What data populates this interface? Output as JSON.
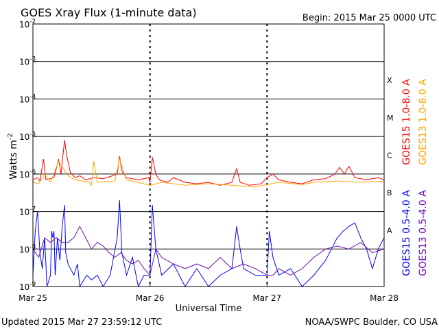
{
  "header": {
    "title": "GOES Xray Flux (1-minute data)",
    "begin": "Begin:  2015 Mar 25 0000 UTC"
  },
  "footer": {
    "updated": "Updated 2015 Mar 27 23:59:12 UTC",
    "credit": "NOAA/SWPC Boulder, CO USA"
  },
  "colors": {
    "goes15_long": "#ff0000",
    "goes13_long": "#ffa500",
    "goes15_short": "#0000ff",
    "goes13_short": "#6a0dad",
    "background": "#ffffff",
    "axis": "#000000"
  },
  "chart_data": {
    "type": "line",
    "title": "GOES Xray Flux (1-minute data)",
    "xlabel": "Universal Time",
    "ylabel_base": "Watts m",
    "ylabel_exp": "-2",
    "y_scale": "log",
    "ylim": [
      1e-09,
      0.01
    ],
    "xlim_days": [
      0,
      3
    ],
    "x_ticks": [
      {
        "day": 0,
        "label": "Mar 25"
      },
      {
        "day": 1,
        "label": "Mar 26"
      },
      {
        "day": 2,
        "label": "Mar 27"
      },
      {
        "day": 3,
        "label": "Mar 28"
      }
    ],
    "y_ticks": [
      {
        "exp": -2,
        "label": "-2"
      },
      {
        "exp": -3,
        "label": "-3"
      },
      {
        "exp": -4,
        "label": "-4"
      },
      {
        "exp": -5,
        "label": "-5"
      },
      {
        "exp": -6,
        "label": "-6"
      },
      {
        "exp": -7,
        "label": "-7"
      },
      {
        "exp": -8,
        "label": "-8"
      },
      {
        "exp": -9,
        "label": "-9"
      }
    ],
    "flare_classes": [
      {
        "label": "X",
        "exp": -3.5
      },
      {
        "label": "M",
        "exp": -4.5
      },
      {
        "label": "C",
        "exp": -5.5
      },
      {
        "label": "B",
        "exp": -6.5
      },
      {
        "label": "A",
        "exp": -7.5
      }
    ],
    "grid": true,
    "legend": "right-vertical",
    "series": [
      {
        "name": "GOES15 1.0-8.0 A",
        "color": "#ff0000",
        "points": [
          [
            0.0,
            7e-07
          ],
          [
            0.04,
            8e-07
          ],
          [
            0.06,
            6.5e-07
          ],
          [
            0.09,
            2.5e-06
          ],
          [
            0.11,
            7e-07
          ],
          [
            0.18,
            8e-07
          ],
          [
            0.22,
            2.5e-06
          ],
          [
            0.24,
            1e-06
          ],
          [
            0.27,
            8e-06
          ],
          [
            0.29,
            3e-06
          ],
          [
            0.32,
            1.1e-06
          ],
          [
            0.36,
            8e-07
          ],
          [
            0.4,
            9e-07
          ],
          [
            0.45,
            7e-07
          ],
          [
            0.52,
            8e-07
          ],
          [
            0.6,
            7.5e-07
          ],
          [
            0.68,
            9e-07
          ],
          [
            0.72,
            1e-06
          ],
          [
            0.74,
            3e-06
          ],
          [
            0.76,
            1.2e-06
          ],
          [
            0.8,
            8e-07
          ],
          [
            0.9,
            7e-07
          ],
          [
            0.99,
            8e-07
          ],
          [
            1.0,
            6e-07
          ],
          [
            1.02,
            2.8e-06
          ],
          [
            1.05,
            1e-06
          ],
          [
            1.08,
            7e-07
          ],
          [
            1.15,
            6e-07
          ],
          [
            1.2,
            8e-07
          ],
          [
            1.3,
            6e-07
          ],
          [
            1.4,
            5.5e-07
          ],
          [
            1.5,
            6e-07
          ],
          [
            1.6,
            5e-07
          ],
          [
            1.7,
            6e-07
          ],
          [
            1.74,
            1.4e-06
          ],
          [
            1.77,
            6e-07
          ],
          [
            1.85,
            5e-07
          ],
          [
            1.95,
            5.5e-07
          ],
          [
            2.0,
            8e-07
          ],
          [
            2.05,
            1e-06
          ],
          [
            2.1,
            7e-07
          ],
          [
            2.2,
            6e-07
          ],
          [
            2.3,
            5.5e-07
          ],
          [
            2.4,
            7e-07
          ],
          [
            2.5,
            7.5e-07
          ],
          [
            2.58,
            1e-06
          ],
          [
            2.62,
            1.5e-06
          ],
          [
            2.66,
            1e-06
          ],
          [
            2.7,
            1.6e-06
          ],
          [
            2.75,
            8e-07
          ],
          [
            2.85,
            7e-07
          ],
          [
            2.95,
            8e-07
          ],
          [
            3.0,
            7e-07
          ]
        ]
      },
      {
        "name": "GOES13 1.0-8.0 A",
        "color": "#ffa500",
        "points": [
          [
            0.0,
            6e-07
          ],
          [
            0.05,
            5.5e-07
          ],
          [
            0.1,
            1e-06
          ],
          [
            0.15,
            6e-07
          ],
          [
            0.22,
            2.2e-06
          ],
          [
            0.3,
            9e-07
          ],
          [
            0.36,
            7e-07
          ],
          [
            0.48,
            6e-07
          ],
          [
            0.5,
            5e-07
          ],
          [
            0.52,
            2.2e-06
          ],
          [
            0.55,
            6e-07
          ],
          [
            0.7,
            6.5e-07
          ],
          [
            0.74,
            2.5e-06
          ],
          [
            0.8,
            7e-07
          ],
          [
            1.0,
            5e-07
          ],
          [
            1.1,
            6e-07
          ],
          [
            1.3,
            5e-07
          ],
          [
            1.5,
            5.5e-07
          ],
          [
            1.7,
            5e-07
          ],
          [
            1.9,
            4.5e-07
          ],
          [
            2.1,
            6e-07
          ],
          [
            2.3,
            5.2e-07
          ],
          [
            2.4,
            6e-07
          ],
          [
            2.6,
            6.5e-07
          ],
          [
            2.8,
            6e-07
          ],
          [
            3.0,
            6.5e-07
          ]
        ]
      },
      {
        "name": "GOES15 0.5-4.0 A",
        "color": "#0000ff",
        "points": [
          [
            0.0,
            2e-09
          ],
          [
            0.02,
            3e-08
          ],
          [
            0.04,
            1e-07
          ],
          [
            0.06,
            8e-09
          ],
          [
            0.08,
            3e-09
          ],
          [
            0.1,
            2e-08
          ],
          [
            0.12,
            1e-09
          ],
          [
            0.15,
            2e-09
          ],
          [
            0.16,
            3e-08
          ],
          [
            0.17,
            2e-08
          ],
          [
            0.18,
            3e-08
          ],
          [
            0.19,
            2e-09
          ],
          [
            0.21,
            2e-08
          ],
          [
            0.23,
            5e-09
          ],
          [
            0.25,
            4e-08
          ],
          [
            0.27,
            1.5e-07
          ],
          [
            0.28,
            8e-09
          ],
          [
            0.3,
            4e-09
          ],
          [
            0.35,
            2e-09
          ],
          [
            0.38,
            4e-09
          ],
          [
            0.4,
            1e-09
          ],
          [
            0.46,
            2e-09
          ],
          [
            0.5,
            1.5e-09
          ],
          [
            0.55,
            2e-09
          ],
          [
            0.6,
            1e-09
          ],
          [
            0.66,
            2e-09
          ],
          [
            0.72,
            2e-08
          ],
          [
            0.74,
            2e-07
          ],
          [
            0.76,
            8e-09
          ],
          [
            0.8,
            2e-09
          ],
          [
            0.85,
            6e-09
          ],
          [
            0.9,
            1e-09
          ],
          [
            0.95,
            2e-09
          ],
          [
            1.0,
            2e-09
          ],
          [
            1.02,
            1.5e-07
          ],
          [
            1.05,
            1e-08
          ],
          [
            1.1,
            2e-09
          ],
          [
            1.2,
            4e-09
          ],
          [
            1.3,
            1e-09
          ],
          [
            1.4,
            3e-09
          ],
          [
            1.5,
            1e-09
          ],
          [
            1.6,
            2e-09
          ],
          [
            1.7,
            3e-09
          ],
          [
            1.74,
            4e-08
          ],
          [
            1.77,
            1e-08
          ],
          [
            1.8,
            3e-09
          ],
          [
            1.9,
            2e-09
          ],
          [
            2.0,
            2e-09
          ],
          [
            2.02,
            3e-08
          ],
          [
            2.05,
            6e-09
          ],
          [
            2.1,
            2e-09
          ],
          [
            2.2,
            3e-09
          ],
          [
            2.3,
            1e-09
          ],
          [
            2.4,
            2e-09
          ],
          [
            2.5,
            5e-09
          ],
          [
            2.55,
            1e-08
          ],
          [
            2.6,
            2e-08
          ],
          [
            2.65,
            3e-08
          ],
          [
            2.7,
            4e-08
          ],
          [
            2.75,
            5e-08
          ],
          [
            2.8,
            2e-08
          ],
          [
            2.85,
            1e-08
          ],
          [
            2.9,
            3e-09
          ],
          [
            2.95,
            1e-08
          ],
          [
            3.0,
            2e-08
          ]
        ]
      },
      {
        "name": "GOES13 0.5-4.0 A",
        "color": "#6a0dad",
        "points": [
          [
            0.0,
            1e-08
          ],
          [
            0.05,
            6e-09
          ],
          [
            0.1,
            2e-08
          ],
          [
            0.15,
            1.5e-08
          ],
          [
            0.2,
            2e-08
          ],
          [
            0.25,
            1.5e-08
          ],
          [
            0.3,
            1.5e-08
          ],
          [
            0.35,
            2e-08
          ],
          [
            0.4,
            4e-08
          ],
          [
            0.45,
            2e-08
          ],
          [
            0.5,
            1e-08
          ],
          [
            0.55,
            1.5e-08
          ],
          [
            0.6,
            1.2e-08
          ],
          [
            0.65,
            8e-09
          ],
          [
            0.7,
            6e-09
          ],
          [
            0.75,
            8e-09
          ],
          [
            0.8,
            5e-09
          ],
          [
            0.85,
            4e-09
          ],
          [
            0.9,
            5e-09
          ],
          [
            0.95,
            3e-09
          ],
          [
            1.0,
            2e-09
          ],
          [
            1.05,
            1e-08
          ],
          [
            1.1,
            6e-09
          ],
          [
            1.2,
            4e-09
          ],
          [
            1.3,
            3e-09
          ],
          [
            1.4,
            4e-09
          ],
          [
            1.5,
            3e-09
          ],
          [
            1.6,
            6e-09
          ],
          [
            1.7,
            3e-09
          ],
          [
            1.8,
            4e-09
          ],
          [
            1.9,
            3e-09
          ],
          [
            2.0,
            2e-09
          ],
          [
            2.05,
            2e-09
          ],
          [
            2.1,
            3e-09
          ],
          [
            2.2,
            2e-09
          ],
          [
            2.3,
            3e-09
          ],
          [
            2.4,
            6e-09
          ],
          [
            2.5,
            1e-08
          ],
          [
            2.6,
            1.2e-08
          ],
          [
            2.7,
            1e-08
          ],
          [
            2.8,
            1.5e-08
          ],
          [
            2.9,
            8e-09
          ],
          [
            3.0,
            1e-08
          ]
        ]
      }
    ]
  }
}
